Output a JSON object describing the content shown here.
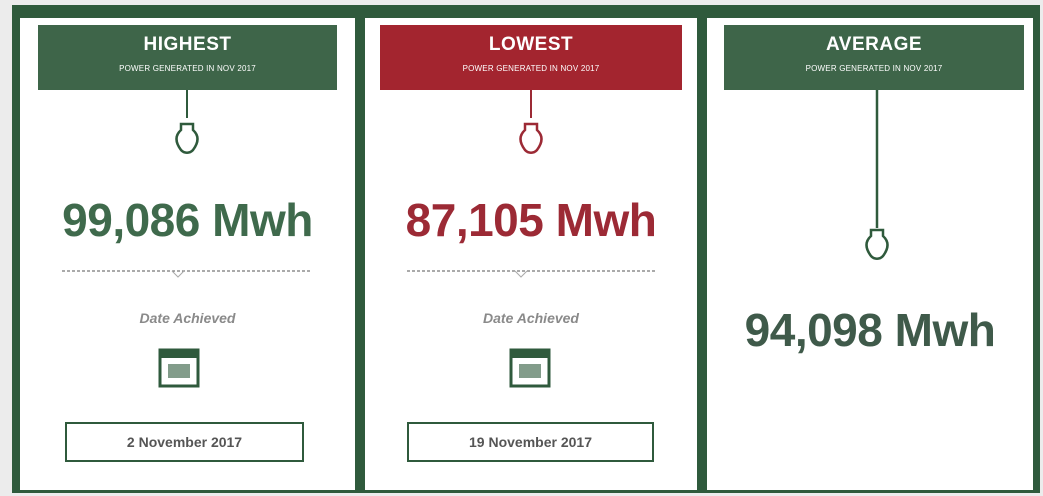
{
  "cards": [
    {
      "title": "HIGHEST",
      "subtitle": "POWER GENERATED IN NOV 2017",
      "value": "99,086 Mwh",
      "date_label": "Date Achieved",
      "date": "2 November 2017"
    },
    {
      "title": "LOWEST",
      "subtitle": "POWER GENERATED IN NOV 2017",
      "value": "87,105 Mwh",
      "date_label": "Date Achieved",
      "date": "19 November 2017"
    },
    {
      "title": "AVERAGE",
      "subtitle": "POWER GENERATED IN NOV 2017",
      "value": "94,098 Mwh"
    }
  ]
}
